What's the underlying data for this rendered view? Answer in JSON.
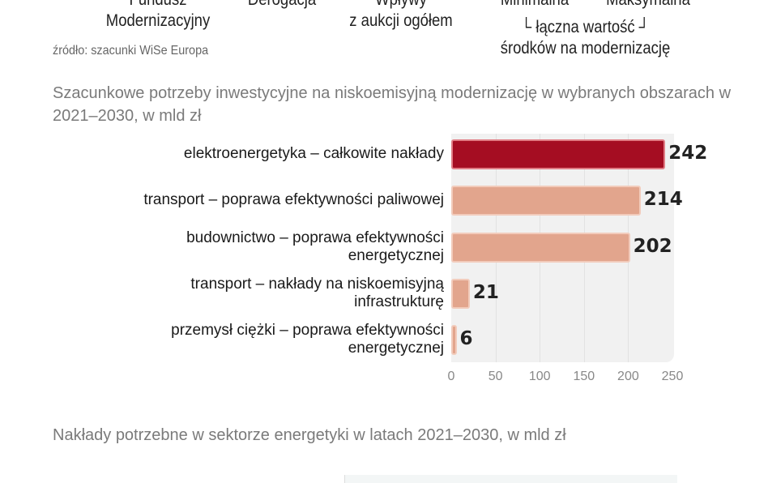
{
  "header_fragments": {
    "fundusz": "Fundusz\nModernizacyjny",
    "derogacja": "Derogacja",
    "wplywy": "Wpływy\nz aukcji ogółem",
    "minimalna": "Minimalna",
    "maksymalna": "Maksymalna",
    "laczna": "└ łączna wartość ┘",
    "srodkow": "środków na modernizację"
  },
  "source": "źródło: szacunki WiSe Europa",
  "chart_data": {
    "type": "bar",
    "orientation": "horizontal",
    "title": "Szacunkowe potrzeby inwestycyjne na niskoemisyjną modernizację w wybranych obszarach w 2021–2030, w mld zł",
    "categories": [
      "elektroenergetyka – całkowite nakłady",
      "transport – poprawa efektywności paliwowej",
      "budownictwo – poprawa efektywności energetycznej",
      "transport – nakłady na niskoemisyjną infrastrukturę",
      "przemysł ciężki – poprawa efektywności energetycznej"
    ],
    "values": [
      242,
      214,
      202,
      21,
      6
    ],
    "xlim": [
      0,
      250
    ],
    "xticks": [
      "0",
      "50",
      "100",
      "150",
      "200",
      "250"
    ],
    "grid": true,
    "colors": {
      "highlight": "#a50d22",
      "default": "#e2a58d"
    }
  },
  "second_chart_title": "Nakłady potrzebne w sektorze energetyki w latach 2021–2030, w mld zł"
}
